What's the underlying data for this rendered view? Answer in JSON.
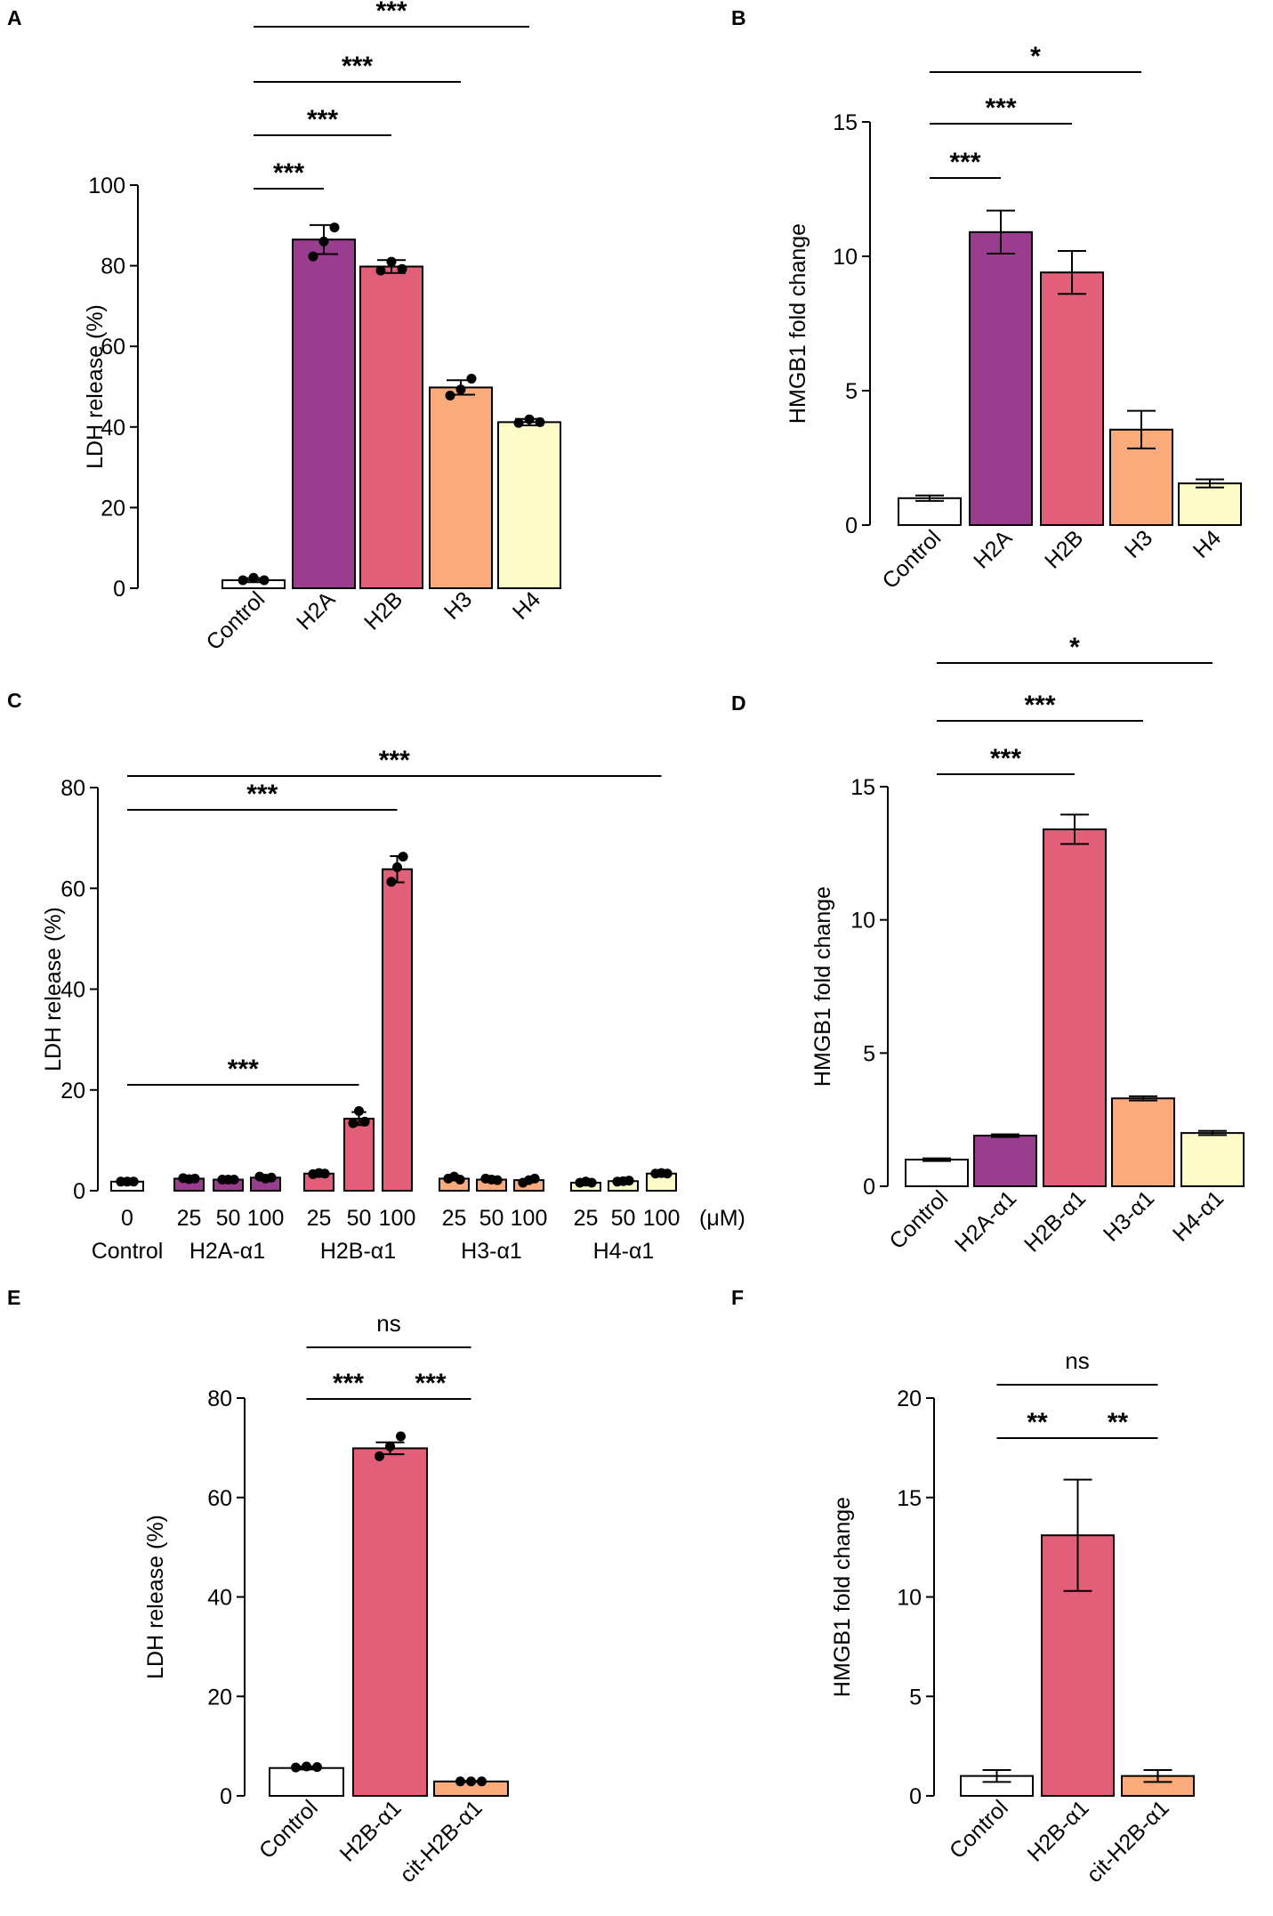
{
  "chart_data": [
    {
      "panel": "A",
      "type": "bar",
      "ylabel": "LDH release (%)",
      "ylim": [
        0,
        100
      ],
      "yticks": [
        0,
        20,
        40,
        60,
        80,
        100
      ],
      "categories": [
        "Control",
        "H2A",
        "H2B",
        "H3",
        "H4"
      ],
      "values": [
        2,
        86.5,
        79.8,
        49.8,
        41.2
      ],
      "errors": [
        0.5,
        3.6,
        1.6,
        1.8,
        0.8
      ],
      "colors": [
        "#ffffff",
        "#9b3d8f",
        "#e15f78",
        "#fbaa7c",
        "#fdfbc8"
      ],
      "points": [
        [
          2,
          2.6,
          2
        ],
        [
          82.3,
          86,
          89.5
        ],
        [
          78.8,
          81,
          79.2
        ],
        [
          47.8,
          49.3,
          52
        ],
        [
          41,
          41.9,
          41.2
        ]
      ],
      "significance": [
        {
          "from": 0,
          "to": 1,
          "label": "***"
        },
        {
          "from": 0,
          "to": 2,
          "label": "***"
        },
        {
          "from": 0,
          "to": 3,
          "label": "***"
        },
        {
          "from": 0,
          "to": 4,
          "label": "***"
        }
      ]
    },
    {
      "panel": "B",
      "type": "bar",
      "ylabel": "HMGB1 fold change",
      "ylim": [
        0,
        15
      ],
      "yticks": [
        0,
        5,
        10,
        15
      ],
      "categories": [
        "Control",
        "H2A",
        "H2B",
        "H3",
        "H4"
      ],
      "values": [
        1,
        10.9,
        9.4,
        3.55,
        1.55
      ],
      "errors": [
        0.1,
        0.8,
        0.8,
        0.7,
        0.15
      ],
      "colors": [
        "#ffffff",
        "#9b3d8f",
        "#e15f78",
        "#fbaa7c",
        "#fdfbc8"
      ],
      "significance": [
        {
          "from": 0,
          "to": 1,
          "label": "***"
        },
        {
          "from": 0,
          "to": 2,
          "label": "***"
        },
        {
          "from": 0,
          "to": 3,
          "label": "*"
        }
      ]
    },
    {
      "panel": "C",
      "type": "bar",
      "ylabel": "LDH release (%)",
      "ylim": [
        0,
        80
      ],
      "yticks": [
        0,
        20,
        40,
        60,
        80
      ],
      "unit_label": "(μM)",
      "bar_labels": [
        "0",
        "25",
        "50",
        "100",
        "25",
        "50",
        "100",
        "25",
        "50",
        "100",
        "25",
        "50",
        "100"
      ],
      "groups": [
        {
          "name": "Control",
          "bars": [
            0
          ]
        },
        {
          "name": "H2A-α1",
          "bars": [
            1,
            2,
            3
          ]
        },
        {
          "name": "H2B-α1",
          "bars": [
            4,
            5,
            6
          ]
        },
        {
          "name": "H3-α1",
          "bars": [
            7,
            8,
            9
          ]
        },
        {
          "name": "H4-α1",
          "bars": [
            10,
            11,
            12
          ]
        }
      ],
      "values": [
        1.8,
        2.4,
        2.2,
        2.6,
        3.4,
        14.3,
        63.8,
        2.4,
        2.2,
        2.1,
        1.6,
        1.9,
        3.4
      ],
      "errors": [
        0.2,
        0.3,
        0.2,
        0.3,
        0.3,
        1.3,
        2.6,
        0.2,
        0.2,
        0.2,
        0.2,
        0.2,
        0.2
      ],
      "colors": [
        "#ffffff",
        "#9b3d8f",
        "#9b3d8f",
        "#9b3d8f",
        "#e15f78",
        "#e15f78",
        "#e15f78",
        "#fbaa7c",
        "#fbaa7c",
        "#fbaa7c",
        "#fdfbc8",
        "#fdfbc8",
        "#fdfbc8"
      ],
      "points": [
        [
          1.8,
          1.8,
          1.8
        ],
        [
          2.5,
          2.3,
          2.4
        ],
        [
          2.2,
          2.2,
          2.2
        ],
        [
          2.8,
          2.4,
          2.6
        ],
        [
          3.3,
          3.5,
          3.4
        ],
        [
          13.4,
          15.8,
          13.7
        ],
        [
          61.3,
          64.2,
          66.3
        ],
        [
          2.4,
          2.8,
          2.2
        ],
        [
          2.4,
          2.2,
          2.1
        ],
        [
          1.6,
          2.1,
          2.4
        ],
        [
          1.6,
          1.8,
          1.6
        ],
        [
          1.8,
          1.9,
          2.0
        ],
        [
          3.4,
          3.5,
          3.4
        ]
      ],
      "significance": [
        {
          "from": 0,
          "to": 5,
          "label": "***"
        },
        {
          "from": 0,
          "to": 6,
          "label": "***"
        },
        {
          "from": 0,
          "to": 12,
          "label": "***"
        }
      ]
    },
    {
      "panel": "D",
      "type": "bar",
      "ylabel": "HMGB1 fold change",
      "ylim": [
        0,
        15
      ],
      "yticks": [
        0,
        5,
        10,
        15
      ],
      "categories": [
        "Control",
        "H2A-α1",
        "H2B-α1",
        "H3-α1",
        "H4-α1"
      ],
      "values": [
        1,
        1.9,
        13.4,
        3.3,
        2.0
      ],
      "errors": [
        0.05,
        0.05,
        0.55,
        0.08,
        0.08
      ],
      "colors": [
        "#ffffff",
        "#9b3d8f",
        "#e15f78",
        "#fbaa7c",
        "#fdfbc8"
      ],
      "significance": [
        {
          "from": 0,
          "to": 2,
          "label": "***"
        },
        {
          "from": 0,
          "to": 3,
          "label": "***"
        },
        {
          "from": 0,
          "to": 4,
          "label": "*"
        }
      ]
    },
    {
      "panel": "E",
      "type": "bar",
      "ylabel": "LDH release (%)",
      "ylim": [
        0,
        80
      ],
      "yticks": [
        0,
        20,
        40,
        60,
        80
      ],
      "categories": [
        "Control",
        "H2B-α1",
        "cit-H2B-α1"
      ],
      "values": [
        5.6,
        69.9,
        2.9
      ],
      "errors": [
        0.3,
        1.2,
        0.1
      ],
      "colors": [
        "#ffffff",
        "#e15f78",
        "#fbaa7c"
      ],
      "points": [
        [
          5.7,
          5.9,
          5.8
        ],
        [
          68.3,
          70.3,
          72.3
        ],
        [
          2.9,
          2.9,
          2.9
        ]
      ],
      "significance": [
        {
          "from": 0,
          "to": 1,
          "label": "***"
        },
        {
          "from": 1,
          "to": 2,
          "label": "***"
        },
        {
          "from": 0,
          "to": 2,
          "label": "ns"
        }
      ]
    },
    {
      "panel": "F",
      "type": "bar",
      "ylabel": "HMGB1 fold change",
      "ylim": [
        0,
        20
      ],
      "yticks": [
        0,
        5,
        10,
        15,
        20
      ],
      "categories": [
        "Control",
        "H2B-α1",
        "cit-H2B-α1"
      ],
      "values": [
        1,
        13.1,
        1
      ],
      "errors": [
        0.3,
        2.8,
        0.3
      ],
      "colors": [
        "#ffffff",
        "#e15f78",
        "#fbaa7c"
      ],
      "significance": [
        {
          "from": 0,
          "to": 1,
          "label": "**"
        },
        {
          "from": 1,
          "to": 2,
          "label": "**"
        },
        {
          "from": 0,
          "to": 2,
          "label": "ns"
        }
      ]
    }
  ]
}
